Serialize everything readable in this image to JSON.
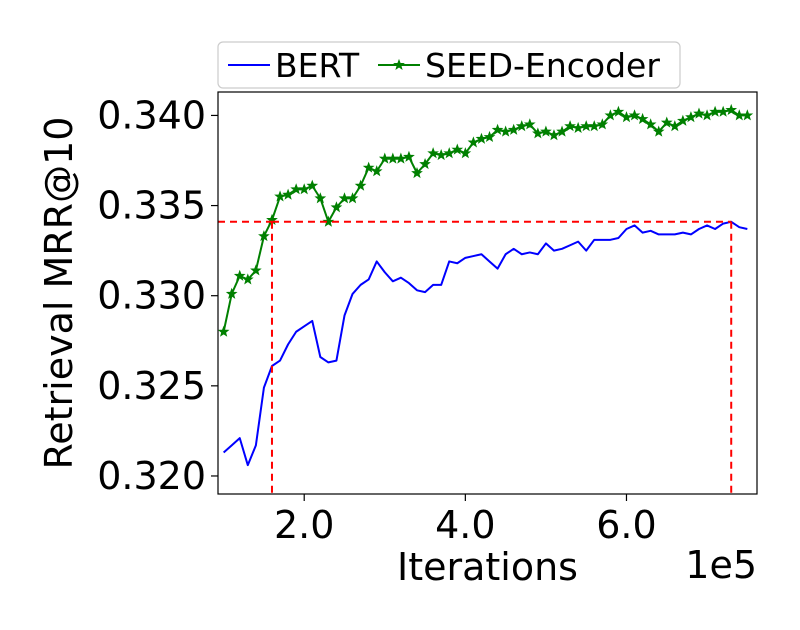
{
  "chart_data": {
    "type": "line",
    "xlabel": "Iterations",
    "ylabel": "Retrieval MRR@10",
    "x_offset_text": "1e5",
    "xlim": [
      0.93,
      7.62
    ],
    "ylim": [
      0.319,
      0.3413
    ],
    "x_ticks": [
      2.0,
      4.0,
      6.0
    ],
    "x_tick_labels": [
      "2.0",
      "4.0",
      "6.0"
    ],
    "y_ticks": [
      0.32,
      0.325,
      0.33,
      0.335,
      0.34
    ],
    "y_tick_labels": [
      "0.320",
      "0.325",
      "0.330",
      "0.335",
      "0.340"
    ],
    "grid": false,
    "legend": {
      "placement": "top-center-outside"
    },
    "series": [
      {
        "name": "BERT",
        "color": "#0000ff",
        "marker": "none",
        "x": [
          1.0,
          1.1,
          1.2,
          1.3,
          1.4,
          1.5,
          1.6,
          1.7,
          1.8,
          1.9,
          2.0,
          2.1,
          2.2,
          2.3,
          2.4,
          2.5,
          2.6,
          2.7,
          2.8,
          2.9,
          3.0,
          3.1,
          3.2,
          3.3,
          3.4,
          3.5,
          3.6,
          3.7,
          3.8,
          3.9,
          4.0,
          4.1,
          4.2,
          4.3,
          4.4,
          4.5,
          4.6,
          4.7,
          4.8,
          4.9,
          5.0,
          5.1,
          5.2,
          5.3,
          5.4,
          5.5,
          5.6,
          5.7,
          5.8,
          5.9,
          6.0,
          6.1,
          6.2,
          6.3,
          6.4,
          6.5,
          6.6,
          6.7,
          6.8,
          6.9,
          7.0,
          7.1,
          7.2,
          7.3,
          7.4,
          7.5
        ],
        "y": [
          0.3213,
          0.3217,
          0.3221,
          0.3206,
          0.3217,
          0.3249,
          0.3261,
          0.3264,
          0.3273,
          0.328,
          0.3283,
          0.3286,
          0.3266,
          0.3263,
          0.3264,
          0.3289,
          0.3301,
          0.3306,
          0.3309,
          0.3319,
          0.3313,
          0.3308,
          0.331,
          0.3307,
          0.3303,
          0.3302,
          0.3306,
          0.3306,
          0.3319,
          0.3318,
          0.3321,
          0.3322,
          0.3323,
          0.3319,
          0.3315,
          0.3323,
          0.3326,
          0.3323,
          0.3324,
          0.3323,
          0.3329,
          0.3325,
          0.3326,
          0.3328,
          0.333,
          0.3325,
          0.3331,
          0.3331,
          0.3331,
          0.3332,
          0.3337,
          0.3339,
          0.3335,
          0.3336,
          0.3334,
          0.3334,
          0.3334,
          0.3335,
          0.3334,
          0.3337,
          0.3339,
          0.3337,
          0.334,
          0.3341,
          0.3338,
          0.3337
        ]
      },
      {
        "name": "SEED-Encoder",
        "color": "#008000",
        "marker": "star",
        "x": [
          1.0,
          1.1,
          1.2,
          1.3,
          1.4,
          1.5,
          1.6,
          1.7,
          1.8,
          1.9,
          2.0,
          2.1,
          2.2,
          2.3,
          2.4,
          2.5,
          2.6,
          2.7,
          2.8,
          2.9,
          3.0,
          3.1,
          3.2,
          3.3,
          3.4,
          3.5,
          3.6,
          3.7,
          3.8,
          3.9,
          4.0,
          4.1,
          4.2,
          4.3,
          4.4,
          4.5,
          4.6,
          4.7,
          4.8,
          4.9,
          5.0,
          5.1,
          5.2,
          5.3,
          5.4,
          5.5,
          5.6,
          5.7,
          5.8,
          5.9,
          6.0,
          6.1,
          6.2,
          6.3,
          6.4,
          6.5,
          6.6,
          6.7,
          6.8,
          6.9,
          7.0,
          7.1,
          7.2,
          7.3,
          7.4,
          7.5
        ],
        "y": [
          0.328,
          0.3301,
          0.3311,
          0.3309,
          0.3314,
          0.3333,
          0.3342,
          0.3355,
          0.3356,
          0.3359,
          0.3359,
          0.3361,
          0.3354,
          0.3341,
          0.3349,
          0.3354,
          0.3354,
          0.3361,
          0.3371,
          0.3369,
          0.3376,
          0.3376,
          0.3376,
          0.3377,
          0.3368,
          0.3373,
          0.3379,
          0.3378,
          0.3379,
          0.3381,
          0.3379,
          0.3385,
          0.3387,
          0.3388,
          0.3392,
          0.3391,
          0.3392,
          0.3394,
          0.3395,
          0.339,
          0.3391,
          0.3389,
          0.3391,
          0.3394,
          0.3393,
          0.3394,
          0.3394,
          0.3395,
          0.34,
          0.3402,
          0.3399,
          0.34,
          0.3398,
          0.3395,
          0.3391,
          0.3396,
          0.3394,
          0.3397,
          0.3399,
          0.3401,
          0.34,
          0.3402,
          0.3402,
          0.3403,
          0.34,
          0.34
        ]
      }
    ],
    "reference_lines": {
      "color": "#ff0000",
      "style": "dashed",
      "level_y": 0.3341,
      "seed_encoder_x": 1.6,
      "bert_x": 7.3
    }
  }
}
